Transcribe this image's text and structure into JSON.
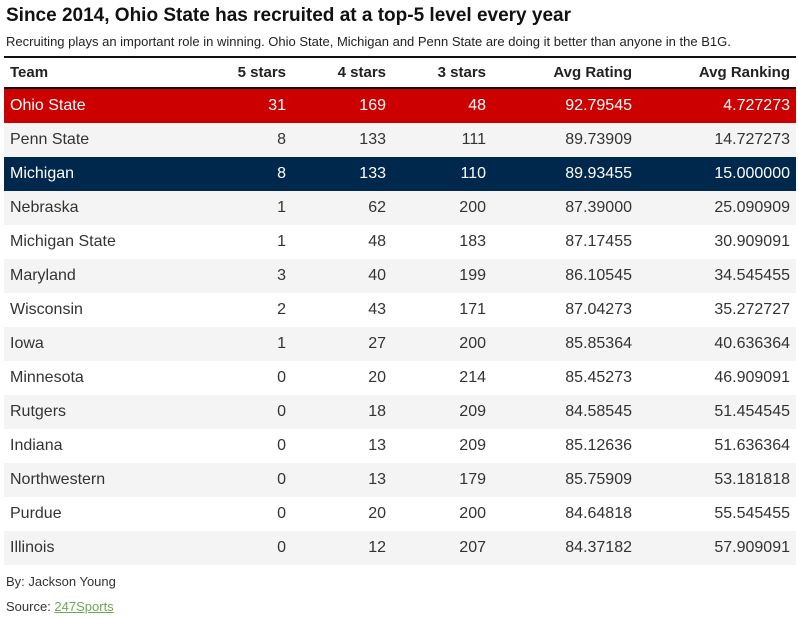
{
  "title": "Since 2014, Ohio State has recruited at a top-5 level every year",
  "subtitle": "Recruiting plays an important role in winning. Ohio State, Michigan and Penn State are doing it better than anyone in the B1G.",
  "byline": "By: Jackson Young",
  "source_label": "Source: ",
  "source_link": "247Sports",
  "colors": {
    "ohio_state": "#cc0000",
    "michigan": "#00274c",
    "link": "#6aa84f"
  },
  "chart_data": {
    "type": "table",
    "columns": [
      "Team",
      "5 stars",
      "4 stars",
      "3 stars",
      "Avg Rating",
      "Avg Ranking"
    ],
    "rows": [
      [
        "Ohio State",
        "31",
        "169",
        "48",
        "92.79545",
        "4.727273"
      ],
      [
        "Penn State",
        "8",
        "133",
        "111",
        "89.73909",
        "14.727273"
      ],
      [
        "Michigan",
        "8",
        "133",
        "110",
        "89.93455",
        "15.000000"
      ],
      [
        "Nebraska",
        "1",
        "62",
        "200",
        "87.39000",
        "25.090909"
      ],
      [
        "Michigan State",
        "1",
        "48",
        "183",
        "87.17455",
        "30.909091"
      ],
      [
        "Maryland",
        "3",
        "40",
        "199",
        "86.10545",
        "34.545455"
      ],
      [
        "Wisconsin",
        "2",
        "43",
        "171",
        "87.04273",
        "35.272727"
      ],
      [
        "Iowa",
        "1",
        "27",
        "200",
        "85.85364",
        "40.636364"
      ],
      [
        "Minnesota",
        "0",
        "20",
        "214",
        "85.45273",
        "46.909091"
      ],
      [
        "Rutgers",
        "0",
        "18",
        "209",
        "84.58545",
        "51.454545"
      ],
      [
        "Indiana",
        "0",
        "13",
        "209",
        "85.12636",
        "51.636364"
      ],
      [
        "Northwestern",
        "0",
        "13",
        "179",
        "85.75909",
        "53.181818"
      ],
      [
        "Purdue",
        "0",
        "20",
        "200",
        "84.64818",
        "55.545455"
      ],
      [
        "Illinois",
        "0",
        "12",
        "207",
        "84.37182",
        "57.909091"
      ]
    ],
    "highlighted_rows": {
      "Ohio State": "ohio_state",
      "Michigan": "michigan"
    }
  }
}
